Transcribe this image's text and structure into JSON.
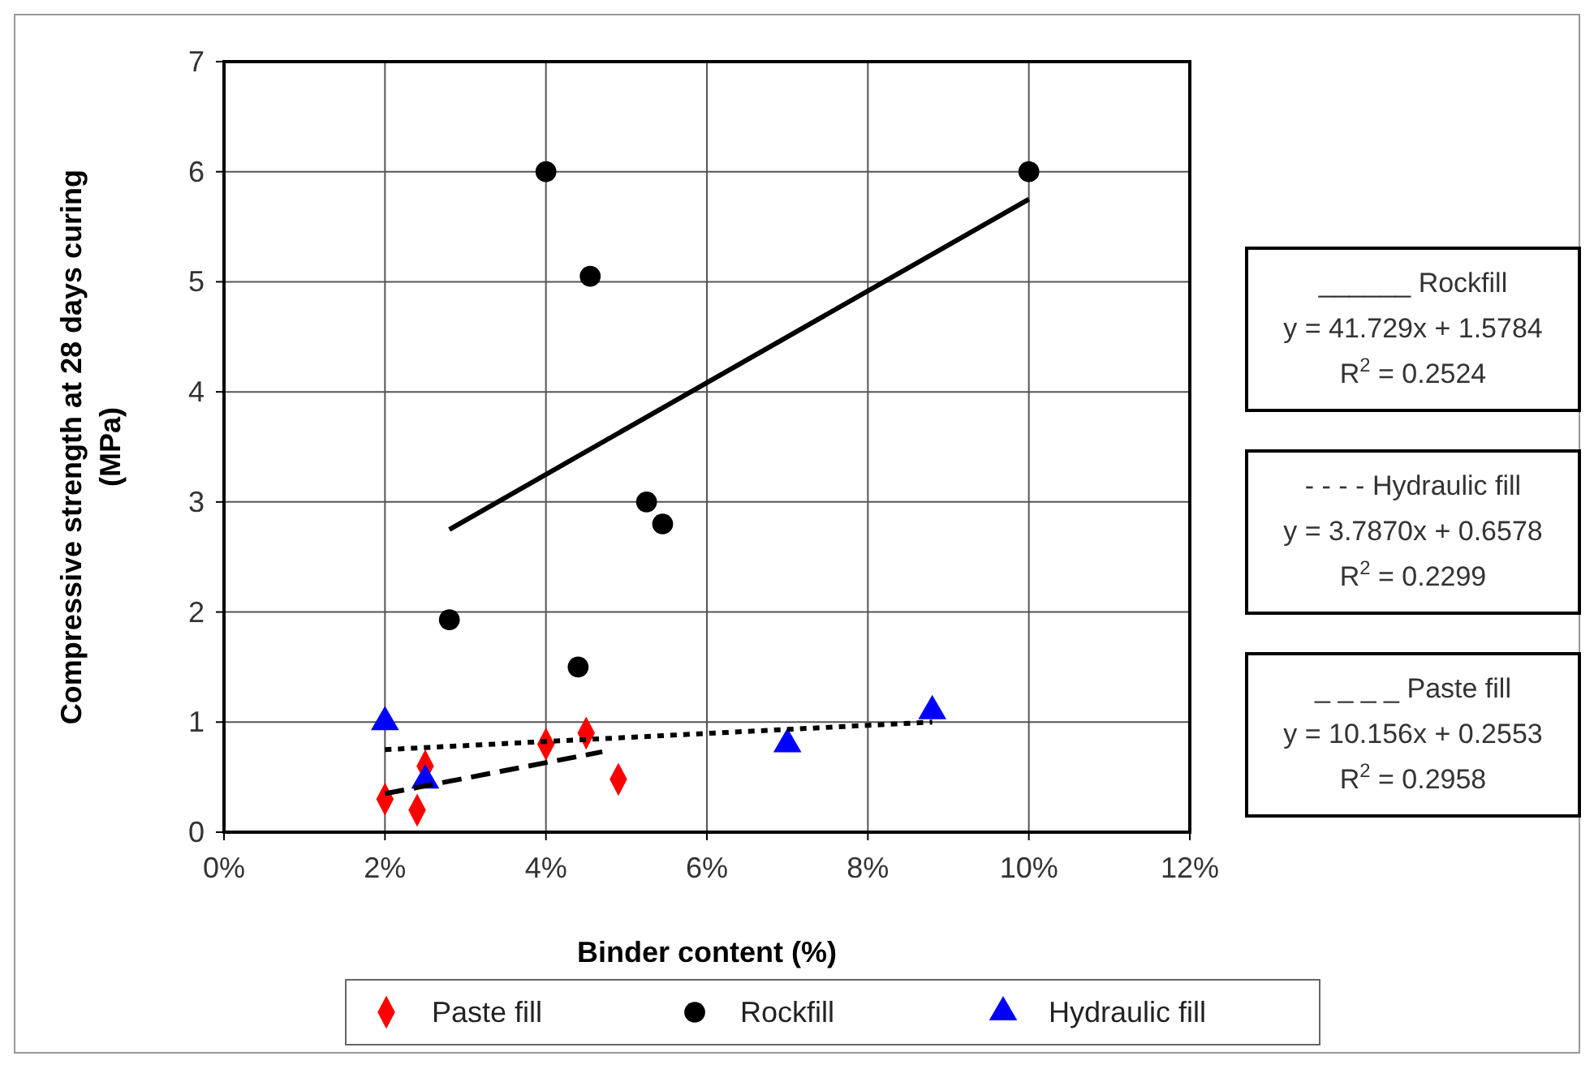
{
  "chart_data": {
    "type": "scatter",
    "xlabel": "Binder content (%)",
    "ylabel": "Compressive strength at 28 days curing (MPa)",
    "xlim": [
      0,
      12
    ],
    "ylim": [
      0,
      7
    ],
    "xticks": [
      {
        "value": 0,
        "label": "0%"
      },
      {
        "value": 2,
        "label": "2%"
      },
      {
        "value": 4,
        "label": "4%"
      },
      {
        "value": 6,
        "label": "6%"
      },
      {
        "value": 8,
        "label": "8%"
      },
      {
        "value": 10,
        "label": "10%"
      },
      {
        "value": 12,
        "label": "12%"
      }
    ],
    "yticks": [
      0,
      1,
      2,
      3,
      4,
      5,
      6,
      7
    ],
    "grid": true,
    "legend": "bottom",
    "series": [
      {
        "name": "Paste fill",
        "color": "#ff0000",
        "marker": "diamond",
        "x": [
          2.0,
          2.4,
          2.5,
          4.0,
          4.5,
          4.9
        ],
        "values": [
          0.3,
          0.2,
          0.6,
          0.8,
          0.9,
          0.48
        ]
      },
      {
        "name": "Rockfill",
        "color": "#000000",
        "marker": "circle",
        "x": [
          4.0,
          4.55,
          2.8,
          5.25,
          5.45,
          4.4,
          10
        ],
        "values": [
          6.0,
          5.05,
          1.93,
          3.0,
          2.8,
          1.5,
          6.0
        ]
      },
      {
        "name": "Hydraulic fill",
        "color": "#0000ff",
        "marker": "triangle",
        "x": [
          2.0,
          2.5,
          7.0,
          8.8
        ],
        "values": [
          1.0,
          0.47,
          0.8,
          1.1
        ]
      },
      {
        "type": "line",
        "color": "#000000",
        "line_style": "solid",
        "x": [
          2.8,
          10
        ],
        "values": [
          2.75,
          5.75
        ]
      },
      {
        "type": "line",
        "color": "#000000",
        "line_style": "dotted",
        "x": [
          2.0,
          8.8
        ],
        "values": [
          0.75,
          1.0
        ]
      },
      {
        "type": "line",
        "color": "#000000",
        "line_style": "dashed",
        "x": [
          2.0,
          4.7
        ],
        "values": [
          0.35,
          0.73
        ]
      }
    ],
    "annotations": [
      "______ Rockfill\ny = 41.729x + 1.5784\nR$^{2}$ = 0.2524",
      "- - - - Hydraulic fill\ny = 3.7870x + 0.6578\nR$^{2}$ = 0.2299",
      "_ _ _ _ Paste fill\ny = 10.156x + 0.2553\nR$^{2}$ = 0.2958"
    ]
  }
}
